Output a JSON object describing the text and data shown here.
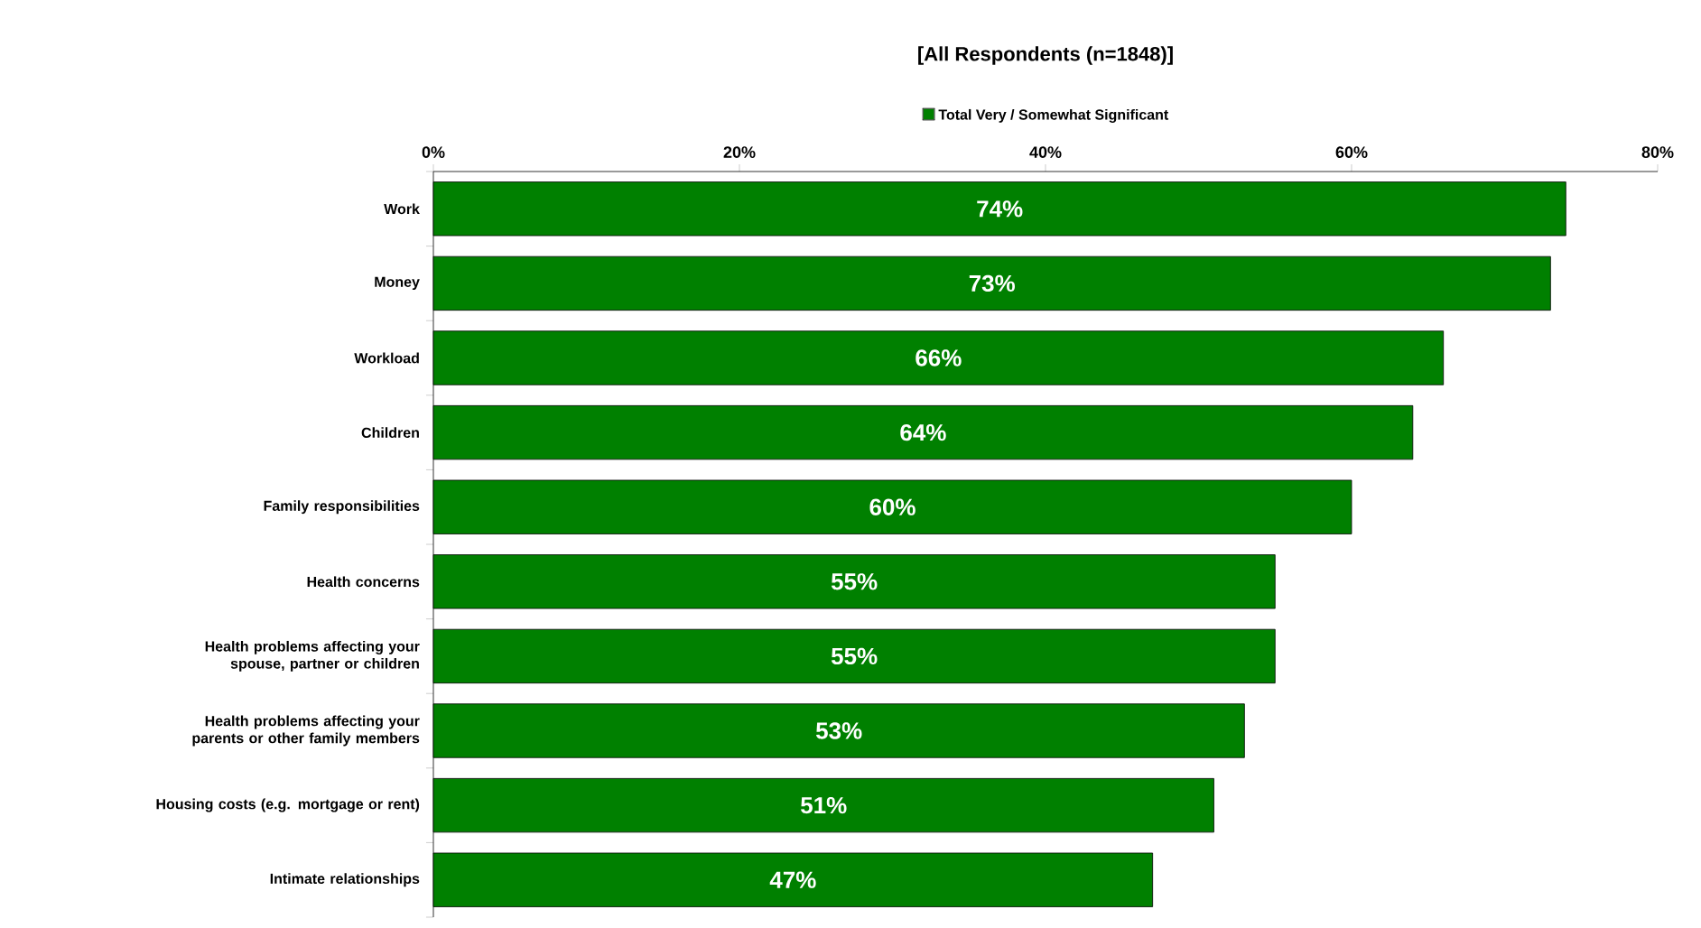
{
  "chart_data": {
    "type": "bar",
    "orientation": "horizontal",
    "title": "[All Respondents (n=1848)]",
    "categories": [
      "Work",
      "Money",
      "Workload",
      "Children",
      "Family responsibilities",
      "Health concerns",
      "Health problems affecting your spouse, partner or children",
      "Health problems affecting your parents or other family members",
      "Housing costs (e.g. mortgage or rent)",
      "Intimate relationships"
    ],
    "series": [
      {
        "name": "Total Very / Somewhat Significant",
        "color": "#008000",
        "values": [
          74,
          73,
          66,
          64,
          60,
          55,
          55,
          53,
          51,
          47
        ],
        "value_labels": [
          "74%",
          "73%",
          "66%",
          "64%",
          "60%",
          "55%",
          "55%",
          "53%",
          "51%",
          "47%"
        ]
      }
    ],
    "xlim": [
      0,
      80
    ],
    "xticks": [
      {
        "value": 0,
        "label": "0%"
      },
      {
        "value": 20,
        "label": "20%"
      },
      {
        "value": 40,
        "label": "40%"
      },
      {
        "value": 60,
        "label": "60%"
      },
      {
        "value": 80,
        "label": "80%"
      }
    ],
    "legend": "top",
    "grid": false
  }
}
